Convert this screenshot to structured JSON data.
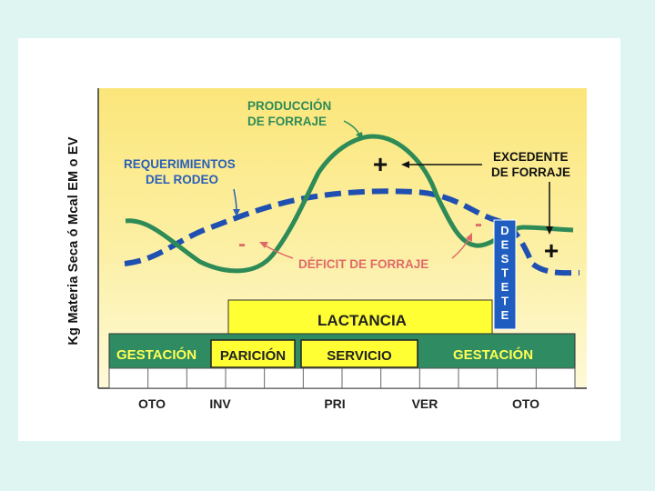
{
  "y_axis_label": "Kg Materia Seca ó Mcal EM o EV",
  "labels": {
    "produccion_line1": "PRODUCCIÓN",
    "produccion_line2": "DE FORRAJE",
    "requerimientos_line1": "REQUERIMIENTOS",
    "requerimientos_line2": "DEL RODEO",
    "excedente_line1": "EXCEDENTE",
    "excedente_line2": "DE FORRAJE",
    "deficit": "DÉFICIT DE FORRAJE",
    "plus_sign": "+",
    "minus_sign": "-"
  },
  "destete_letters": [
    "D",
    "E",
    "S",
    "T",
    "E",
    "T",
    "E"
  ],
  "bars": {
    "lactancia": "LACTANCIA",
    "gestacion_left": "GESTACIÓN",
    "paricion": "PARICIÓN",
    "servicio": "SERVICIO",
    "gestacion_right": "GESTACIÓN"
  },
  "seasons": [
    "OTO",
    "INV",
    "PRI",
    "VER",
    "OTO"
  ],
  "colors": {
    "produccion_line": "#2e8b57",
    "requerimientos_line": "#1f4fb0",
    "deficit_label": "#e06a6a",
    "requerimientos_label": "#2b5fb8",
    "produccion_label": "#2e8b57",
    "band_green": "#2e8b62",
    "band_yellow": "#ffff33",
    "bar_label_yellow": "#ffff55"
  }
}
